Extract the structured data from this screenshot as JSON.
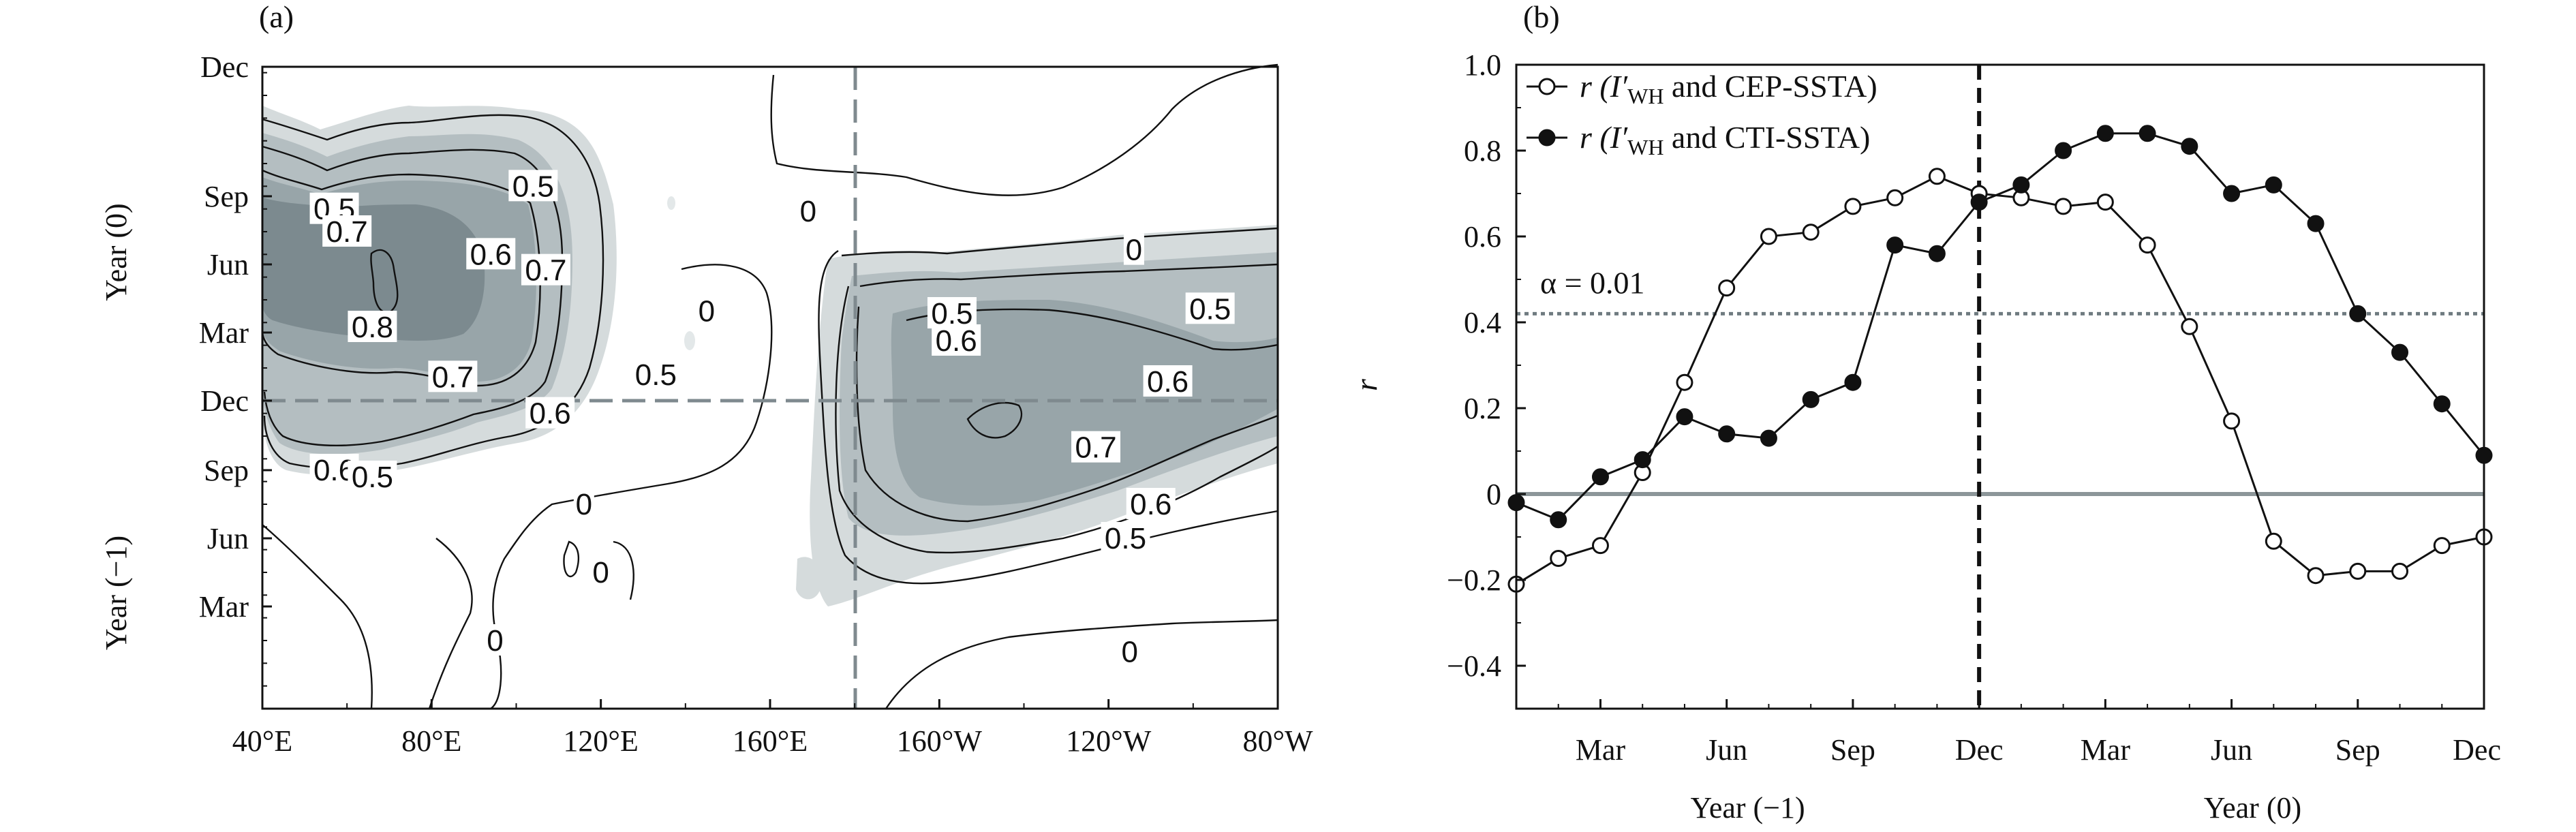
{
  "chart_data": [
    {
      "panel_label": "(a)",
      "type": "heatmap",
      "x_ticks": [
        "40°E",
        "80°E",
        "120°E",
        "160°E",
        "160°W",
        "120°W",
        "80°W"
      ],
      "y_ticks": [
        "Mar",
        "Jun",
        "Sep",
        "Dec",
        "Mar",
        "Jun",
        "Sep",
        "Dec"
      ],
      "y_groups": [
        "Year (−1)",
        "Year (0)"
      ],
      "shading_colors": {
        "0.5": "#d5dbdc",
        "0.6": "#b4bec1",
        "0.7": "#98a5a9",
        "0.8": "#7c8a8f"
      },
      "contour_labels": [
        {
          "text": "0.5",
          "lon": 104,
          "lat_month": 22
        },
        {
          "text": "0.5",
          "lon": 57,
          "lat_month": 21
        },
        {
          "text": "0.7",
          "lon": 60,
          "lat_month": 20
        },
        {
          "text": "0.6",
          "lon": 94,
          "lat_month": 19
        },
        {
          "text": "0.7",
          "lon": 107,
          "lat_month": 18.3
        },
        {
          "text": "0.8",
          "lon": 66,
          "lat_month": 15.8
        },
        {
          "text": "0.5",
          "lon": 133,
          "lat_month": 13.7
        },
        {
          "text": "0.7",
          "lon": 85,
          "lat_month": 13.6
        },
        {
          "text": "0.6",
          "lon": 108,
          "lat_month": 12
        },
        {
          "text": "0.6",
          "lon": 57,
          "lat_month": 9.5
        },
        {
          "text": "0.5",
          "lon": 66,
          "lat_month": 9.2
        },
        {
          "text": "0",
          "lon": 116,
          "lat_month": 8
        },
        {
          "text": "0",
          "lon": 120,
          "lat_month": 5
        },
        {
          "text": "0",
          "lon": 95,
          "lat_month": 2
        },
        {
          "text": "0",
          "lon": 169,
          "lat_month": 20.9
        },
        {
          "text": "0",
          "lon": 145,
          "lat_month": 16.5
        },
        {
          "text": "0",
          "lon": 246,
          "lat_month": 19.2
        },
        {
          "text": "0.5",
          "lon": 203,
          "lat_month": 16.4
        },
        {
          "text": "0.5",
          "lon": 264,
          "lat_month": 16.6
        },
        {
          "text": "0.6",
          "lon": 204,
          "lat_month": 15.2
        },
        {
          "text": "0.6",
          "lon": 254,
          "lat_month": 13.4
        },
        {
          "text": "0.7",
          "lon": 237,
          "lat_month": 10.5
        },
        {
          "text": "0.6",
          "lon": 250,
          "lat_month": 8
        },
        {
          "text": "0.5",
          "lon": 244,
          "lat_month": 6.5
        },
        {
          "text": "0",
          "lon": 245,
          "lat_month": 1.5
        }
      ],
      "reference_lines": {
        "vertical_lon": 180,
        "horizontal_month": 12
      }
    },
    {
      "panel_label": "(b)",
      "type": "line",
      "months": [
        "Jan",
        "Feb",
        "Mar",
        "Apr",
        "May",
        "Jun",
        "Jul",
        "Aug",
        "Sep",
        "Oct",
        "Nov",
        "Dec",
        "Jan",
        "Feb",
        "Mar",
        "Apr",
        "May",
        "Jun",
        "Jul",
        "Aug",
        "Sep",
        "Oct",
        "Nov",
        "Dec"
      ],
      "x_ticks": [
        "Mar",
        "Jun",
        "Sep",
        "Dec",
        "Mar",
        "Jun",
        "Sep",
        "Dec"
      ],
      "x_groups": [
        "Year (−1)",
        "Year (0)"
      ],
      "ylabel": "r",
      "ylim": [
        -0.5,
        1.0
      ],
      "y_ticks": [
        "1.0",
        "0.8",
        "0.6",
        "0.4",
        "0.2",
        "0",
        "−0.2",
        "−0.4"
      ],
      "series": [
        {
          "name_prefix": "r (I′",
          "name_sub": "WH",
          "name_suffix": " and CEP-SSTA)",
          "marker": "open-circle",
          "values": [
            -0.21,
            -0.15,
            -0.12,
            0.05,
            0.26,
            0.48,
            0.6,
            0.61,
            0.67,
            0.69,
            0.74,
            0.7,
            0.69,
            0.67,
            0.68,
            0.58,
            0.39,
            0.17,
            -0.11,
            -0.19,
            -0.18,
            -0.18,
            -0.12,
            -0.1
          ]
        },
        {
          "name_prefix": "r (I′",
          "name_sub": "WH",
          "name_suffix": " and CTI-SSTA)",
          "marker": "filled-circle",
          "values": [
            -0.02,
            -0.06,
            0.04,
            0.08,
            0.18,
            0.14,
            0.13,
            0.22,
            0.26,
            0.58,
            0.56,
            0.68,
            0.72,
            0.8,
            0.84,
            0.84,
            0.81,
            0.7,
            0.72,
            0.63,
            0.42,
            0.33,
            0.21,
            0.09
          ]
        }
      ],
      "significance": {
        "label": "α = 0.01",
        "value": 0.42
      },
      "zero_line": 0,
      "vertical_dashed_at": "Dec"
    }
  ]
}
